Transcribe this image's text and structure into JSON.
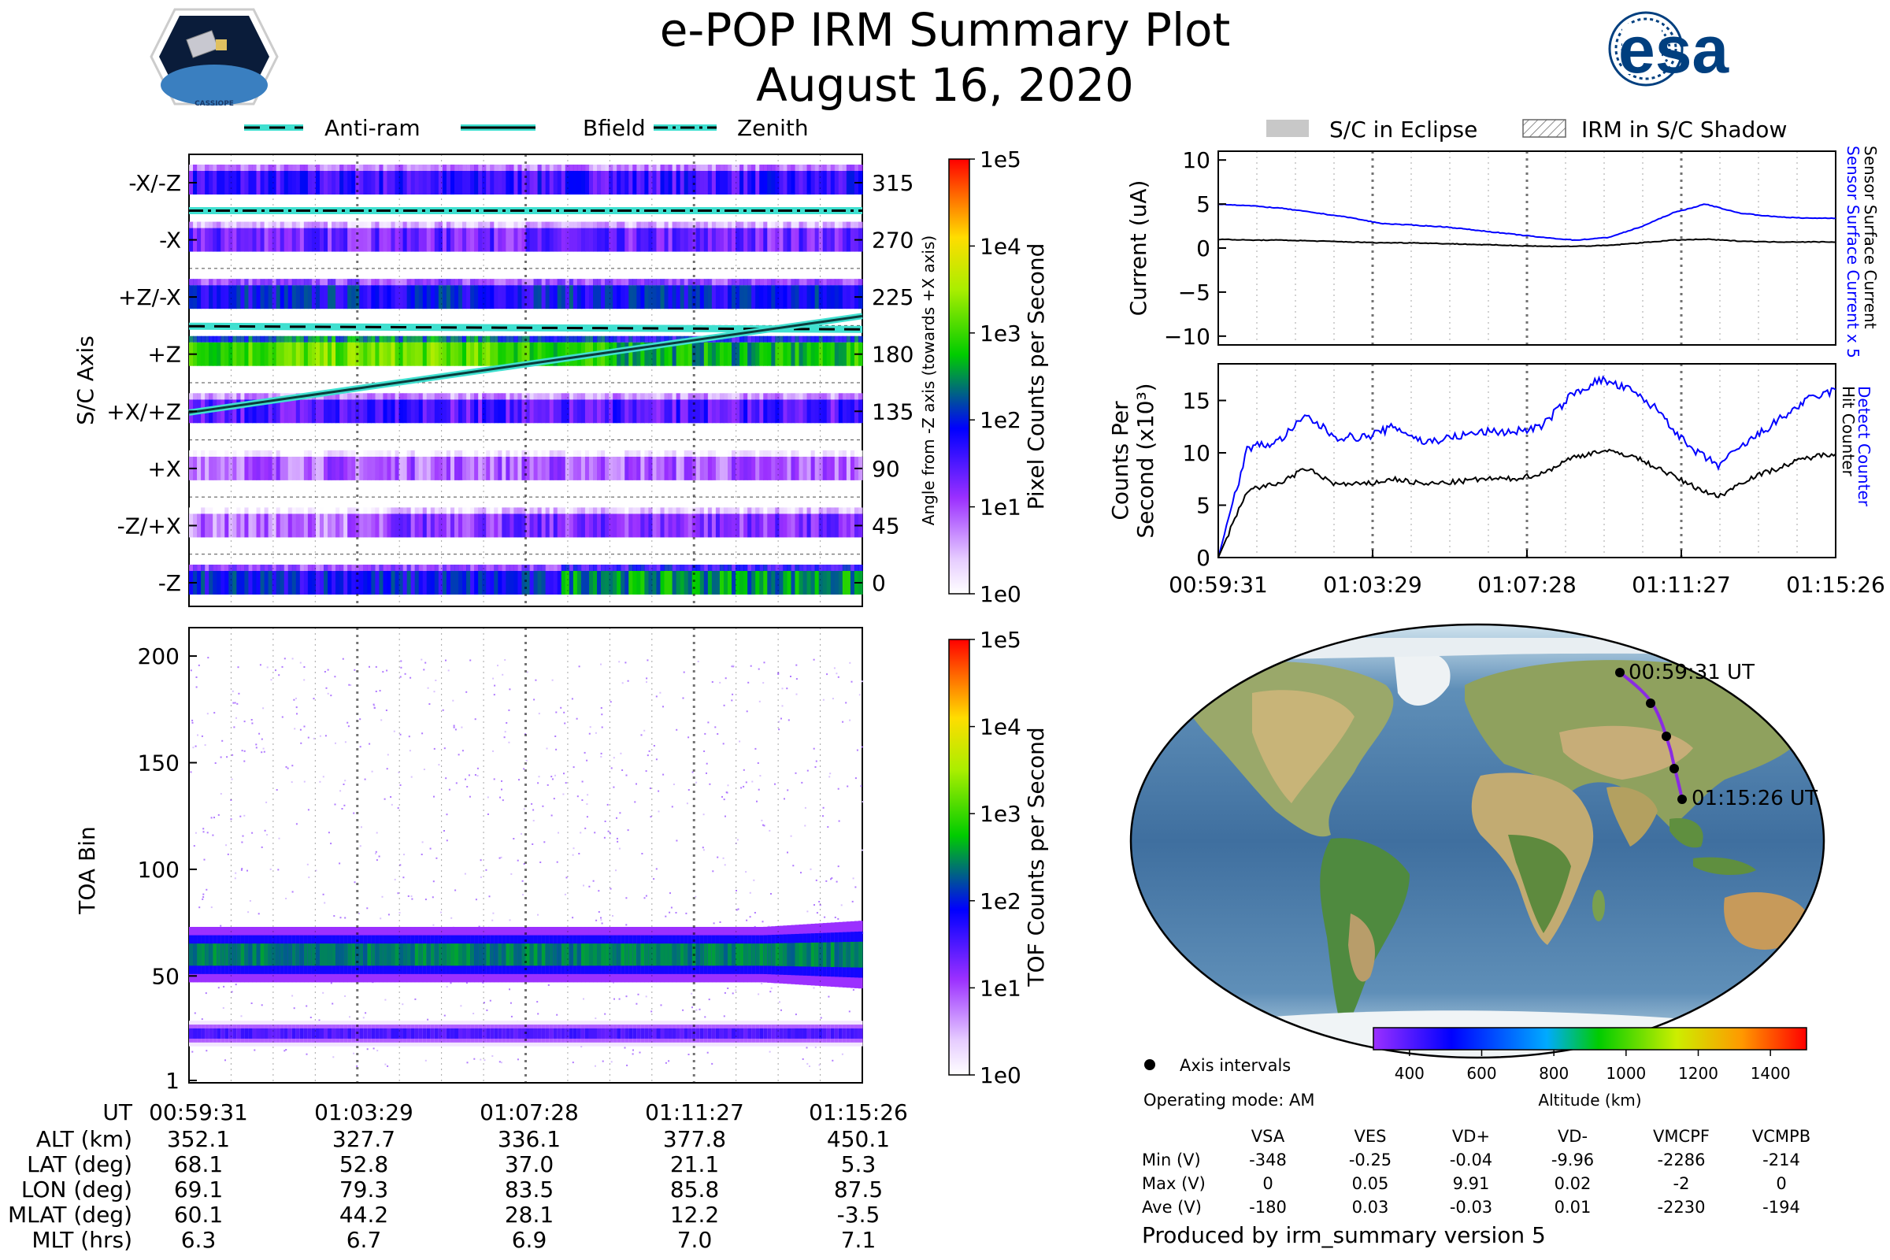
{
  "header": {
    "title": "e-POP IRM Summary Plot",
    "date": "August 16, 2020",
    "logo_left_text": "CASSIOPE",
    "logo_right_text": "esa"
  },
  "legend_top": {
    "items": [
      "Anti-ram",
      "Bfield",
      "Zenith"
    ],
    "right_items": [
      "S/C in Eclipse",
      "IRM in S/C Shadow"
    ]
  },
  "colors": {
    "guide_fill": "#40e0d0",
    "bfield": "#2a8f8a",
    "blue_trace": "#0000ff",
    "black_trace": "#000000",
    "orbit": "#8a2be2"
  },
  "chart_data": [
    {
      "id": "sc_axis",
      "type": "heatmap",
      "ylabel": "S/C Axis",
      "y2label": "Angle from -Z axis (towards +X axis)",
      "categories": [
        "-X/-Z",
        "-X",
        "+Z/-X",
        "+Z",
        "+X/+Z",
        "+X",
        "-Z/+X",
        "-Z"
      ],
      "right_ticks": [
        "315",
        "270",
        "225",
        "180",
        "135",
        "90",
        "45",
        "0"
      ],
      "band_intensity_log10": [
        1.6,
        1.3,
        1.9,
        2.9,
        1.5,
        0.9,
        1.2,
        1.9
      ],
      "antiram_deg": 202,
      "zenith_deg": 293,
      "bfield_deg": {
        "start": 134,
        "end": 210
      },
      "colorbar": {
        "label": "Pixel Counts per Second",
        "ticks": [
          "1e5",
          "1e4",
          "1e3",
          "1e2",
          "1e1",
          "1e0"
        ]
      }
    },
    {
      "id": "toa",
      "type": "heatmap",
      "ylabel": "TOA Bin",
      "yticks": [
        "200",
        "150",
        "100",
        "50",
        "1"
      ],
      "ylim": [
        1,
        210
      ],
      "bands": [
        {
          "center": 60,
          "width": 26,
          "log10": 2.4
        },
        {
          "center": 23,
          "width": 12,
          "log10": 1.5
        }
      ],
      "colorbar": {
        "label": "TOF Counts per Second",
        "ticks": [
          "1e5",
          "1e4",
          "1e3",
          "1e2",
          "1e1",
          "1e0"
        ]
      }
    },
    {
      "id": "current",
      "type": "line",
      "ylabel": "Current (uA)",
      "yticks": [
        "10",
        "5",
        "0",
        "−5",
        "−10"
      ],
      "ylim": [
        -11,
        11
      ],
      "right_labels": [
        "Sensor Surface Current x 5",
        "Sensor Surface Current"
      ],
      "series": [
        {
          "name": "Sensor Surface Current x 5",
          "values": [
            5.0,
            4.8,
            4.5,
            4.0,
            3.5,
            2.8,
            2.6,
            2.4,
            2.0,
            1.6,
            1.2,
            0.9,
            1.2,
            2.4,
            4.0,
            5.0,
            4.0,
            3.6,
            3.4,
            3.4
          ]
        },
        {
          "name": "Sensor Surface Current",
          "values": [
            1.0,
            0.9,
            0.9,
            0.8,
            0.7,
            0.6,
            0.6,
            0.5,
            0.4,
            0.3,
            0.2,
            0.2,
            0.3,
            0.6,
            0.9,
            1.0,
            0.8,
            0.7,
            0.7,
            0.7
          ]
        }
      ]
    },
    {
      "id": "counts",
      "type": "line",
      "ylabel": "Counts Per",
      "ylabel2": "Second (x10³)",
      "yticks": [
        "15",
        "10",
        "5",
        "0"
      ],
      "ylim": [
        0,
        18.5
      ],
      "right_labels": [
        "Detect Counter",
        "Hit Counter"
      ],
      "series": [
        {
          "name": "Detect Counter",
          "values": [
            0,
            10.5,
            11.0,
            13.5,
            11.5,
            11.5,
            12.5,
            11.0,
            11.5,
            12.0,
            12.0,
            12.5,
            15.5,
            17.0,
            16.0,
            14.0,
            10.5,
            8.8,
            11.0,
            13.0,
            15.0,
            16.0
          ]
        },
        {
          "name": "Hit Counter",
          "values": [
            0,
            6.5,
            7.0,
            8.5,
            7.0,
            7.0,
            7.5,
            7.0,
            7.2,
            7.5,
            7.5,
            8.0,
            9.5,
            10.2,
            9.8,
            8.5,
            7.0,
            5.8,
            7.5,
            8.5,
            9.5,
            10.0
          ]
        }
      ]
    }
  ],
  "time_axis": {
    "right_top_ticks": [
      "00:59:31",
      "01:03:29",
      "01:07:28",
      "01:11:27",
      "01:15:26"
    ]
  },
  "footer_table": {
    "labels": [
      "UT",
      "ALT (km)",
      "LAT (deg)",
      "LON (deg)",
      "MLAT (deg)",
      "MLT (hrs)"
    ],
    "columns": [
      [
        "00:59:31",
        "352.1",
        "68.1",
        "69.1",
        "60.1",
        "6.3"
      ],
      [
        "01:03:29",
        "327.7",
        "52.8",
        "79.3",
        "44.2",
        "6.7"
      ],
      [
        "01:07:28",
        "336.1",
        "37.0",
        "83.5",
        "28.1",
        "6.9"
      ],
      [
        "01:11:27",
        "377.8",
        "21.1",
        "85.8",
        "12.2",
        "7.0"
      ],
      [
        "01:15:26",
        "450.1",
        "5.3",
        "87.5",
        "-3.5",
        "7.1"
      ]
    ]
  },
  "map": {
    "start_label": "00:59:31 UT",
    "end_label": "01:15:26 UT",
    "altitude_colorbar": {
      "label": "Altitude (km)",
      "ticks": [
        "400",
        "600",
        "800",
        "1000",
        "1200",
        "1400"
      ]
    },
    "axis_intervals_label": "Axis intervals",
    "operating_mode": "Operating mode: AM"
  },
  "voltage_table": {
    "headers": [
      "VSA",
      "VES",
      "VD+",
      "VD-",
      "VMCPF",
      "VCMPB"
    ],
    "rows": [
      {
        "label": "Min (V)",
        "values": [
          "-348",
          "-0.25",
          "-0.04",
          "-9.96",
          "-2286",
          "-214"
        ]
      },
      {
        "label": "Max (V)",
        "values": [
          "0",
          "0.05",
          "9.91",
          "0.02",
          "-2",
          "0"
        ]
      },
      {
        "label": "Ave (V)",
        "values": [
          "-180",
          "0.03",
          "-0.03",
          "0.01",
          "-2230",
          "-194"
        ]
      }
    ]
  },
  "footer_note": "Produced by irm_summary version 5"
}
